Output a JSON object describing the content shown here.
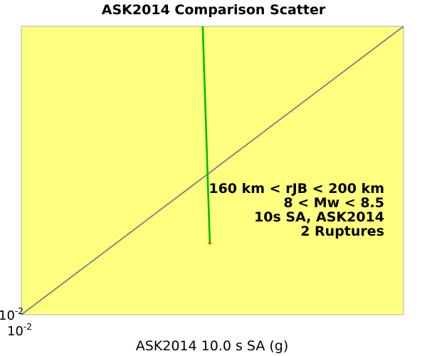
{
  "chart_data": {
    "type": "scatter",
    "title": "ASK2014 Comparison Scatter",
    "xlabel": "ASK2014 10.0 s SA (g)",
    "ylabel": "",
    "x_scale": "log",
    "y_scale": "log",
    "xlim": [
      0.01,
      0.06
    ],
    "ylim": [
      0.01,
      0.06
    ],
    "x_tick_labels": [
      {
        "base": "10",
        "exp": "-2"
      }
    ],
    "y_tick_labels": [
      {
        "base": "10",
        "exp": "-2"
      }
    ],
    "reference_line": {
      "type": "y=x",
      "color": "#808080"
    },
    "series": [
      {
        "color": "#00bb00",
        "marker_color": "#cc3300",
        "points": [
          {
            "x": 0.0234,
            "y": 0.06
          },
          {
            "x": 0.0242,
            "y": 0.0156
          }
        ]
      }
    ],
    "annotations": [
      "160 km < rJB < 200 km",
      "8 < Mw < 8.5",
      "10s SA, ASK2014",
      "2 Ruptures"
    ],
    "plot_background": "#ffff80",
    "grid": false
  }
}
